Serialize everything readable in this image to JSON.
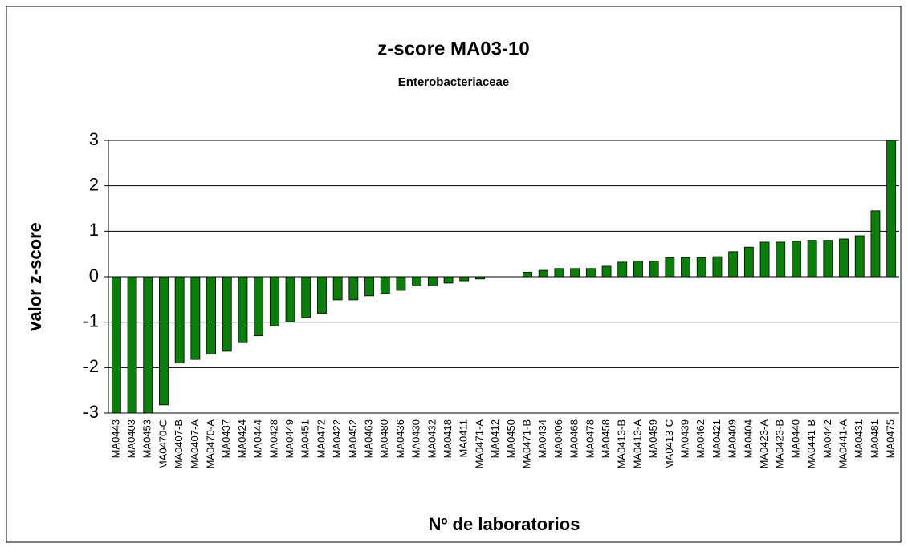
{
  "chart_data": {
    "type": "bar",
    "title": "z-score MA03-10",
    "subtitle": "Enterobacteriaceae",
    "xlabel": "Nº de laboratorios",
    "ylabel": "valor z-score",
    "categories": [
      "MA0443",
      "MA0403",
      "MA0453",
      "MA0470-C",
      "MA0407-B",
      "MA0407-A",
      "MA0470-A",
      "MA0437",
      "MA0424",
      "MA0444",
      "MA0428",
      "MA0449",
      "MA0451",
      "MA0472",
      "MA0422",
      "MA0452",
      "MA0463",
      "MA0480",
      "MA0436",
      "MA0430",
      "MA0432",
      "MA0418",
      "MA0411",
      "MA0471-A",
      "MA0412",
      "MA0450",
      "MA0471-B",
      "MA0434",
      "MA0406",
      "MA0468",
      "MA0478",
      "MA0458",
      "MA0413-B",
      "MA0413-A",
      "MA0459",
      "MA0413-C",
      "MA0439",
      "MA0462",
      "MA0421",
      "MA0409",
      "MA0404",
      "MA0423-A",
      "MA0423-B",
      "MA0440",
      "MA0441-B",
      "MA0442",
      "MA0441-A",
      "MA0431",
      "MA0481",
      "MA0475"
    ],
    "values": [
      -3,
      -3,
      -3,
      -2.82,
      -1.9,
      -1.82,
      -1.7,
      -1.64,
      -1.45,
      -1.3,
      -1.08,
      -0.99,
      -0.9,
      -0.81,
      -0.51,
      -0.51,
      -0.42,
      -0.37,
      -0.3,
      -0.2,
      -0.2,
      -0.14,
      -0.09,
      -0.05,
      0,
      0,
      0.1,
      0.14,
      0.18,
      0.18,
      0.18,
      0.23,
      0.32,
      0.34,
      0.34,
      0.42,
      0.42,
      0.42,
      0.44,
      0.55,
      0.65,
      0.76,
      0.76,
      0.78,
      0.8,
      0.8,
      0.83,
      0.9,
      1.45,
      3
    ],
    "color": "#0b7d0b",
    "ylim": [
      -3,
      3
    ],
    "yticks": [
      -3,
      -2,
      -1,
      0,
      1,
      2,
      3
    ],
    "grid": true
  }
}
